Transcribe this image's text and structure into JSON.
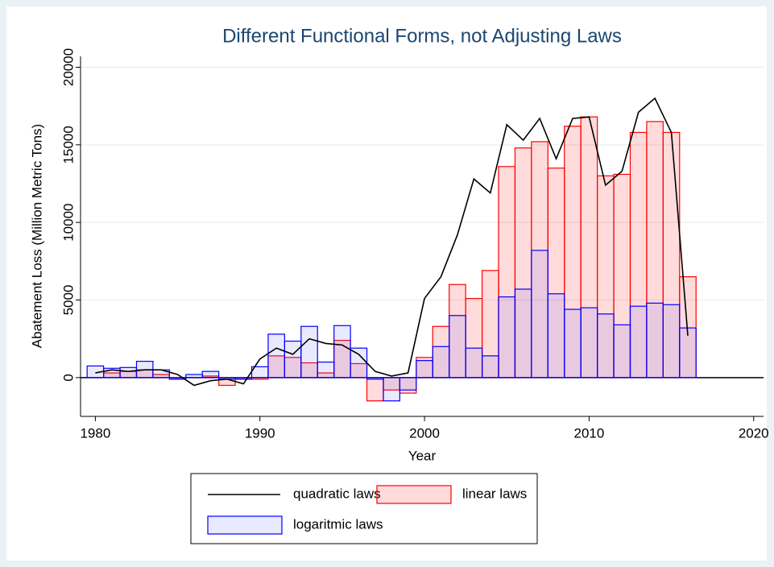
{
  "chart_data": {
    "type": "bar",
    "title": "Different Functional Forms, not Adjusting Laws",
    "x_label": "Year",
    "y_label": "Abatement Loss (Million Metric Tons)",
    "x": [
      1980,
      1981,
      1982,
      1983,
      1984,
      1985,
      1986,
      1987,
      1988,
      1989,
      1990,
      1991,
      1992,
      1993,
      1994,
      1995,
      1996,
      1997,
      1998,
      1999,
      2000,
      2001,
      2002,
      2003,
      2004,
      2005,
      2006,
      2007,
      2008,
      2009,
      2010,
      2011,
      2012,
      2013,
      2014,
      2015,
      2016
    ],
    "series": [
      {
        "name": "quadratic laws",
        "type": "line",
        "color": "#000000",
        "values": [
          300,
          500,
          400,
          500,
          500,
          200,
          -500,
          -200,
          -100,
          -400,
          1200,
          1900,
          1500,
          2500,
          2200,
          2100,
          1500,
          400,
          100,
          300,
          5100,
          6500,
          9200,
          12800,
          11900,
          16300,
          15300,
          16700,
          14100,
          16700,
          16800,
          12400,
          13300,
          17100,
          18000,
          15800,
          2700
        ]
      },
      {
        "name": "linear laws",
        "type": "bar",
        "color": "#ff0000",
        "fill": "rgba(255,0,0,0.14)",
        "values": [
          0,
          300,
          400,
          500,
          200,
          -100,
          0,
          100,
          -500,
          -100,
          -100,
          1400,
          1300,
          950,
          300,
          2400,
          900,
          -1500,
          -800,
          -1000,
          1300,
          3300,
          6000,
          5100,
          6900,
          13600,
          14800,
          15200,
          13500,
          16200,
          16800,
          13000,
          13100,
          15800,
          16500,
          15800,
          6500
        ]
      },
      {
        "name": "logaritmic laws",
        "type": "bar",
        "color": "#0000ff",
        "fill": "rgba(70,70,255,0.12)",
        "values": [
          750,
          600,
          650,
          1050,
          500,
          -100,
          200,
          400,
          -100,
          -100,
          700,
          2800,
          2350,
          3300,
          1000,
          3350,
          1900,
          -100,
          -1500,
          -800,
          1100,
          2000,
          4000,
          1900,
          1400,
          5200,
          5700,
          8200,
          5400,
          4400,
          4500,
          4100,
          3400,
          4600,
          4800,
          4700,
          3200
        ]
      }
    ],
    "xlim": [
      1979.1,
      2020.6
    ],
    "ylim": [
      -2500,
      20700
    ],
    "xticks": [
      1980,
      1990,
      2000,
      2010,
      2020
    ],
    "yticks": [
      0,
      5000,
      10000,
      15000,
      20000
    ],
    "grid": true,
    "legend": "bottom"
  }
}
